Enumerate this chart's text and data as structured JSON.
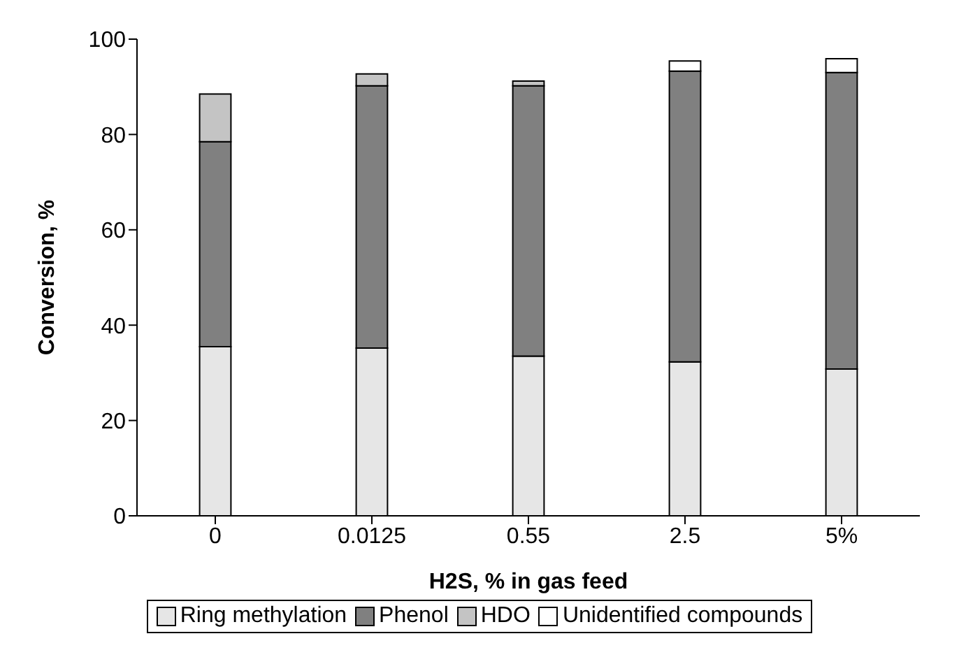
{
  "chart_data": {
    "type": "bar",
    "stacked": true,
    "xlabel": "H2S, % in gas feed",
    "ylabel": "Conversion, %",
    "categories": [
      "0",
      "0.0125",
      "0.55",
      "2.5",
      "5%"
    ],
    "ylim": [
      0,
      100
    ],
    "yticks": [
      0,
      20,
      40,
      60,
      80,
      100
    ],
    "grid": false,
    "legend": "bottom",
    "series": [
      {
        "name": "Ring methylation",
        "color": "#e6e6e6",
        "values": [
          35.5,
          35.2,
          33.5,
          32.3,
          30.8
        ]
      },
      {
        "name": "Phenol",
        "color": "#808080",
        "values": [
          43,
          55,
          56.7,
          61,
          62.2
        ]
      },
      {
        "name": "HDO",
        "color": "#c4c4c4",
        "values": [
          10,
          2.5,
          1,
          0,
          0
        ]
      },
      {
        "name": "Unidentified compounds",
        "color": "#ffffff",
        "values": [
          0,
          0,
          0,
          2.1,
          2.9
        ]
      }
    ]
  }
}
